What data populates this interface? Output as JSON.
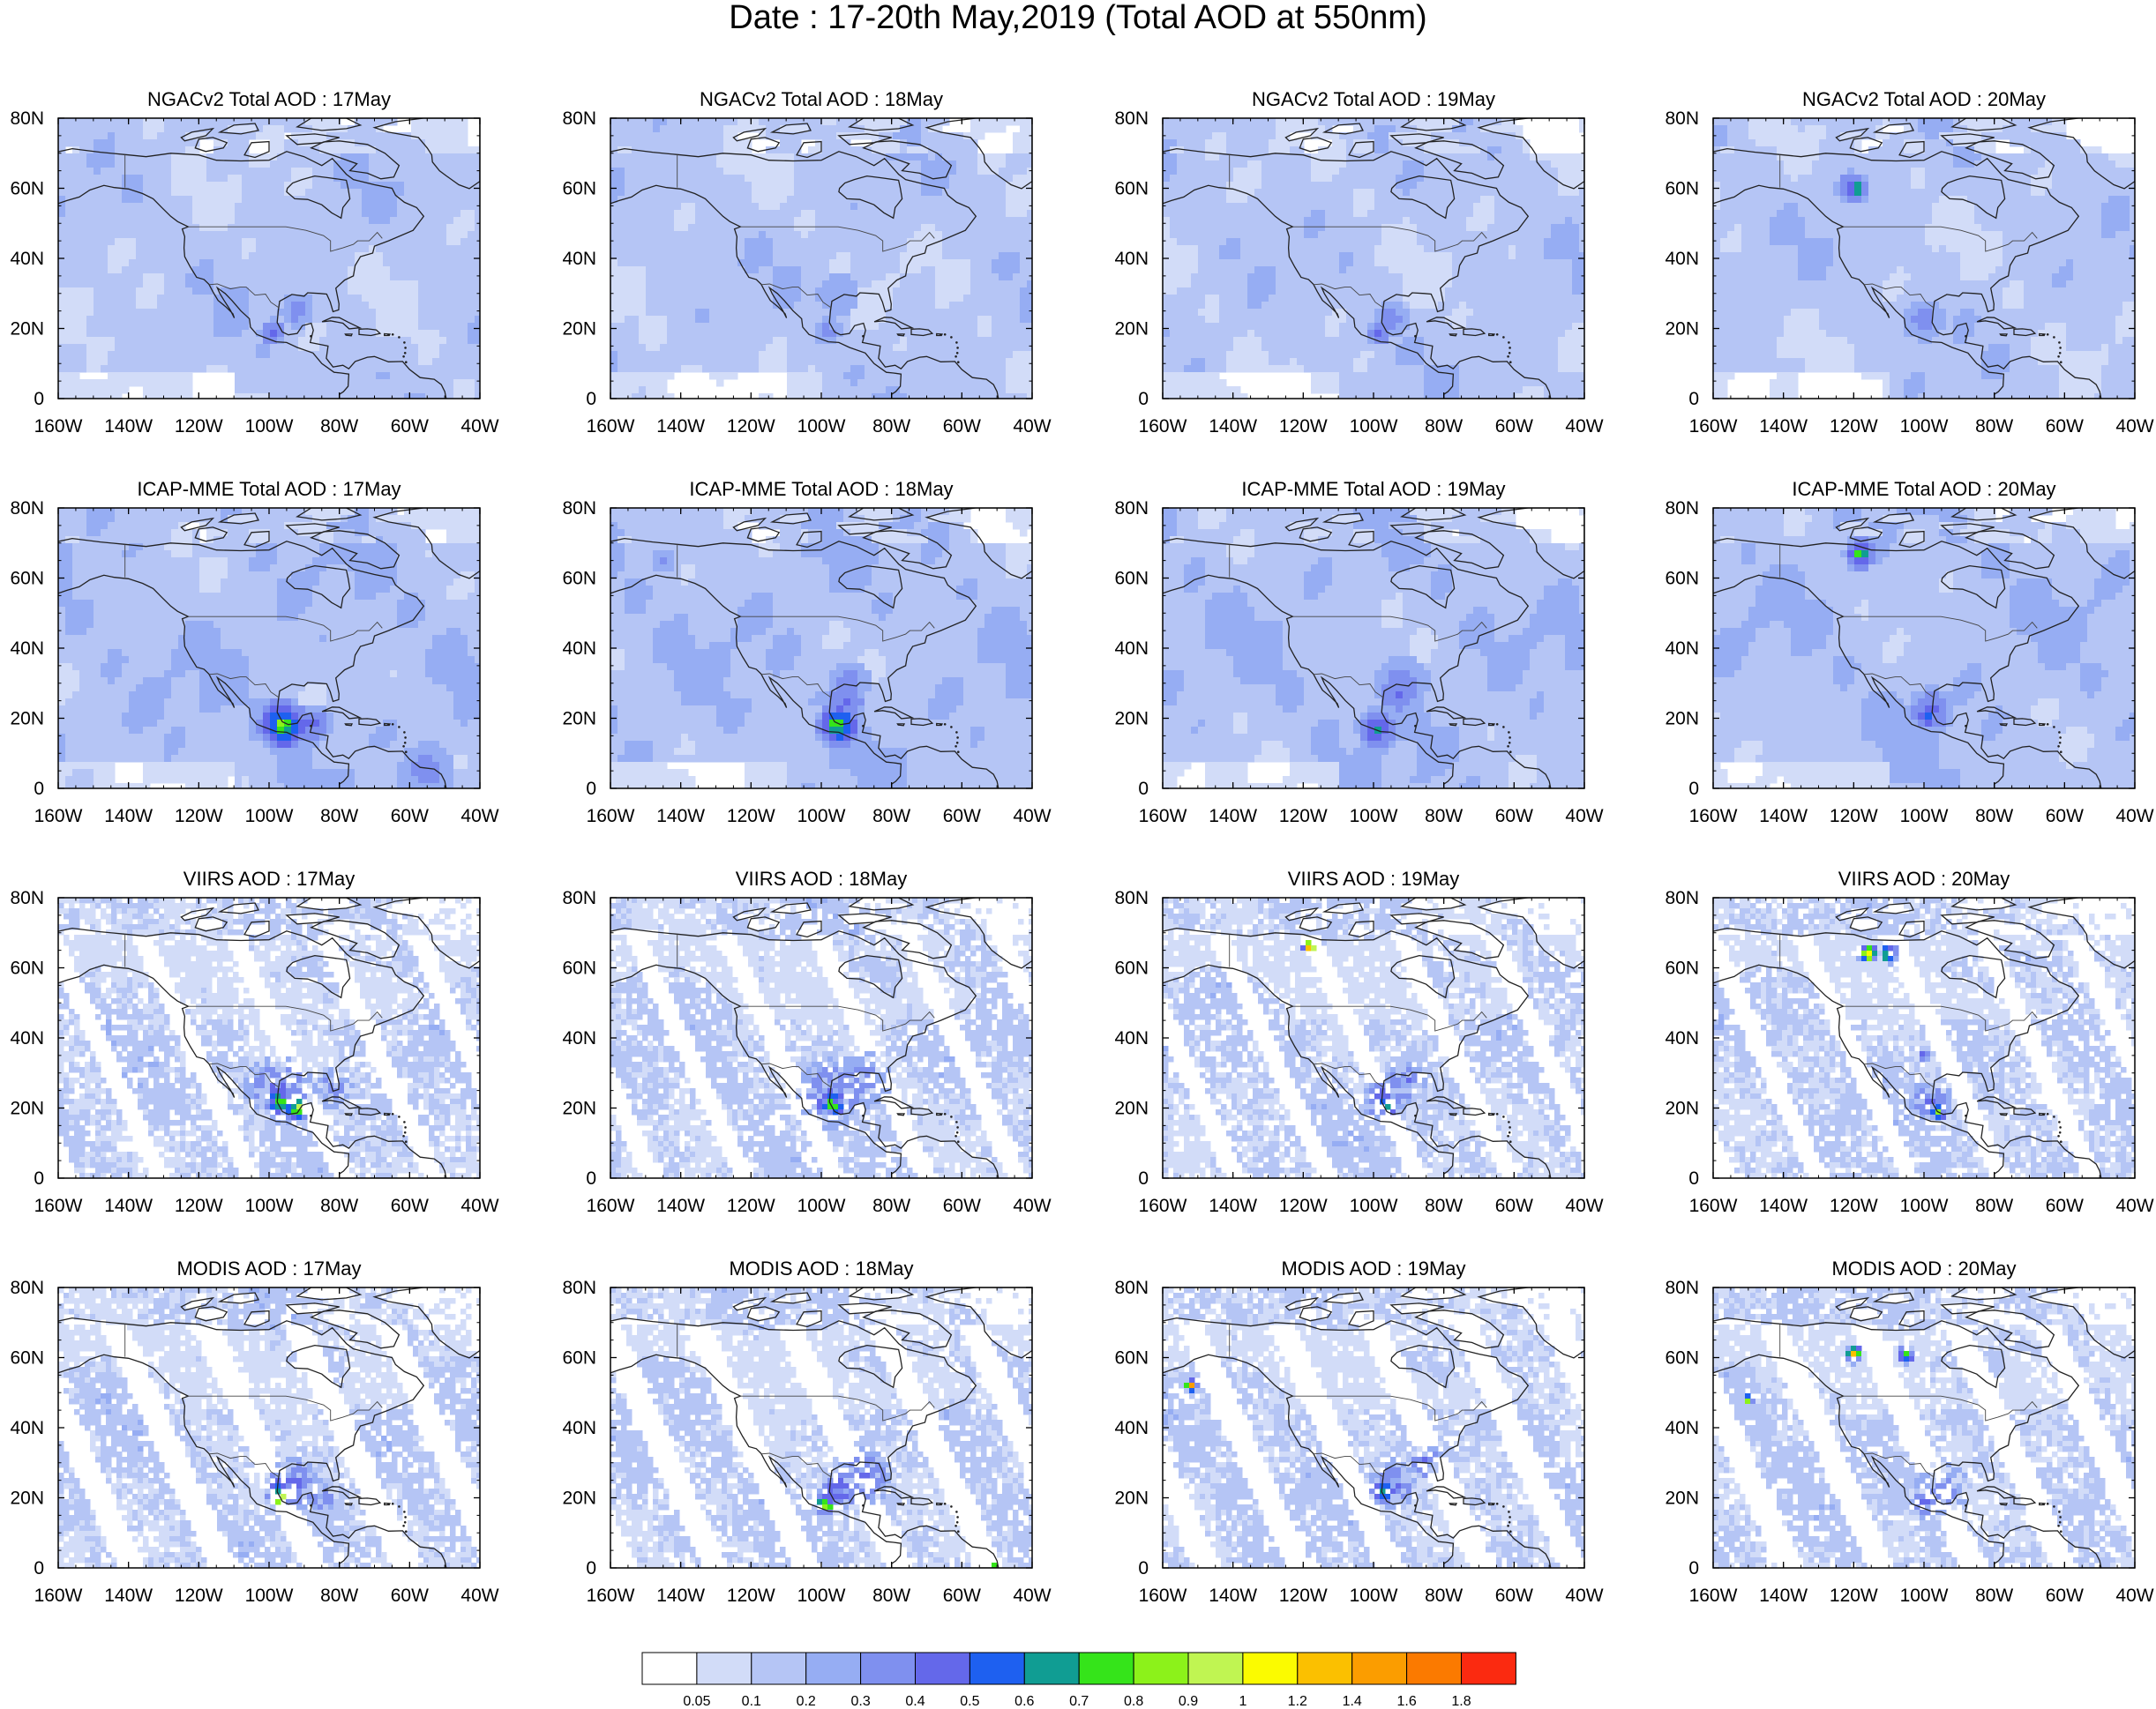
{
  "title": "Date : 17-20th May,2019 (Total AOD at 550nm)",
  "rows": [
    {
      "id": "ngac",
      "style": "smooth",
      "panels": [
        {
          "title": "NGACv2 Total AOD : 17May"
        },
        {
          "title": "NGACv2 Total AOD : 18May"
        },
        {
          "title": "NGACv2 Total AOD : 19May"
        },
        {
          "title": "NGACv2 Total AOD : 20May"
        }
      ]
    },
    {
      "id": "icap",
      "style": "smooth",
      "panels": [
        {
          "title": "ICAP-MME Total AOD : 17May"
        },
        {
          "title": "ICAP-MME Total AOD : 18May"
        },
        {
          "title": "ICAP-MME Total AOD : 19May"
        },
        {
          "title": "ICAP-MME Total AOD : 20May"
        }
      ]
    },
    {
      "id": "viirs",
      "style": "swath",
      "panels": [
        {
          "title": "VIIRS AOD : 17May"
        },
        {
          "title": "VIIRS AOD : 18May"
        },
        {
          "title": "VIIRS AOD : 19May"
        },
        {
          "title": "VIIRS AOD : 20May"
        }
      ]
    },
    {
      "id": "modis",
      "style": "swath",
      "panels": [
        {
          "title": "MODIS AOD : 17May"
        },
        {
          "title": "MODIS AOD : 18May"
        },
        {
          "title": "MODIS AOD : 19May"
        },
        {
          "title": "MODIS AOD : 20May"
        }
      ]
    }
  ],
  "axes": {
    "x_ticks": [
      "160W",
      "140W",
      "120W",
      "100W",
      "80W",
      "60W",
      "40W"
    ],
    "x_range_deg": [
      -160,
      -40
    ],
    "y_ticks": [
      "0",
      "20N",
      "40N",
      "60N",
      "80N"
    ],
    "y_range_deg": [
      0,
      80
    ]
  },
  "colorbar": {
    "colors": [
      "#ffffff",
      "#d2dcf8",
      "#b5c5f5",
      "#96adf3",
      "#7f90ef",
      "#6468ea",
      "#1e60f0",
      "#109d93",
      "#35e41a",
      "#8cf21a",
      "#c0f552",
      "#fbfb00",
      "#fbc000",
      "#fb9d00",
      "#fb7a00",
      "#fb2a10"
    ],
    "labels": [
      "0.05",
      "0.1",
      "0.2",
      "0.3",
      "0.4",
      "0.5",
      "0.6",
      "0.7",
      "0.8",
      "0.9",
      "1",
      "1.2",
      "1.4",
      "1.6",
      "1.8"
    ]
  }
}
